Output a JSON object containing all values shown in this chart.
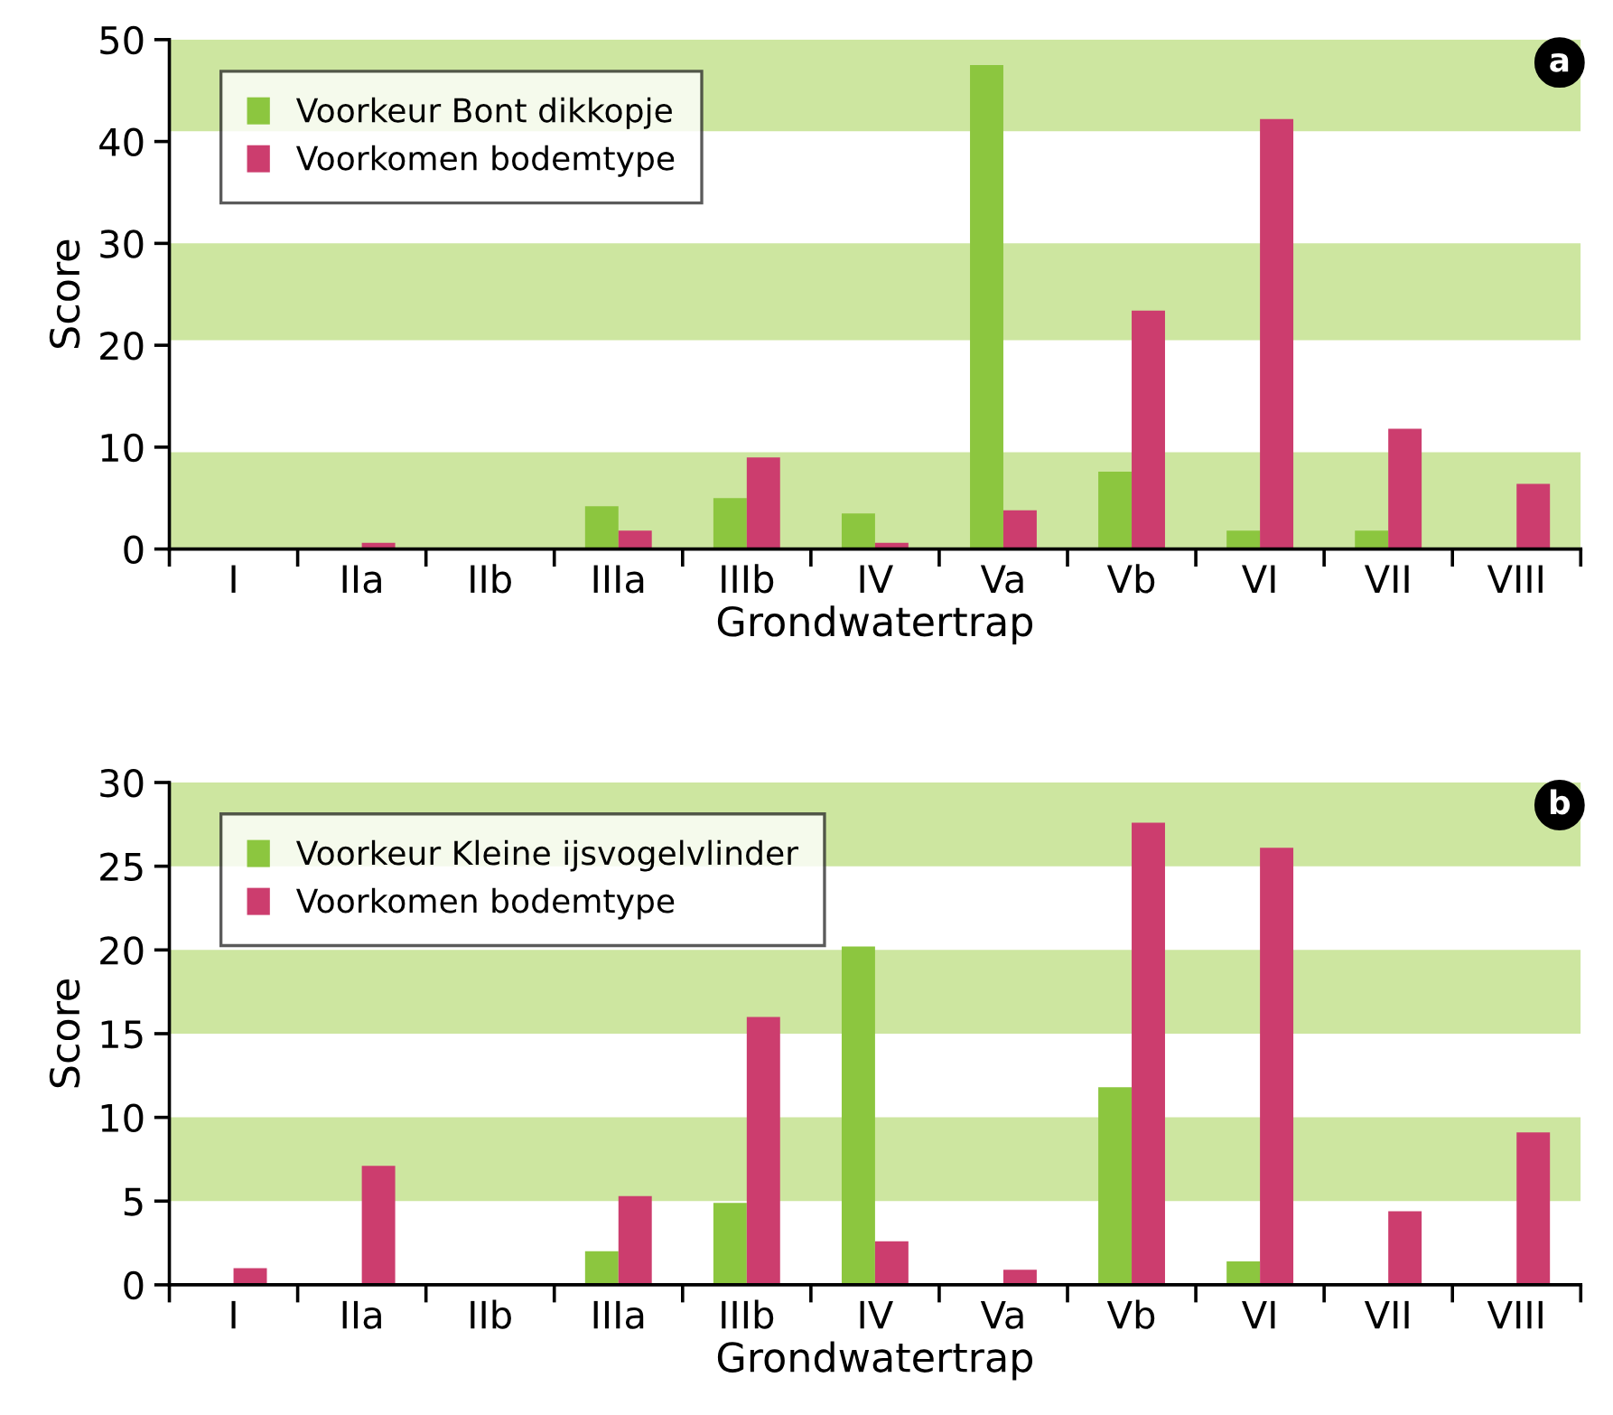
{
  "chart_data": [
    {
      "type": "bar",
      "xlabel": "Grondwatertrap",
      "ylabel": "Score",
      "categories": [
        "I",
        "IIa",
        "IIb",
        "IIIa",
        "IIIb",
        "IV",
        "Va",
        "Vb",
        "VI",
        "VII",
        "VIII"
      ],
      "series": [
        {
          "name": "Voorkeur Bont dikkopje",
          "color": "#8cc63f",
          "values": [
            0,
            0,
            0,
            4.2,
            5,
            3.5,
            47.5,
            7.6,
            1.8,
            1.8,
            0
          ]
        },
        {
          "name": "Voorkomen bodemtype",
          "color": "#cc3d6e",
          "values": [
            0.1,
            0.6,
            0,
            1.8,
            9,
            0.6,
            3.8,
            23.4,
            42.2,
            11.8,
            6.4
          ]
        }
      ],
      "ylim": [
        0,
        50
      ],
      "yticks": [
        0,
        10,
        20,
        30,
        40,
        50
      ],
      "bands": [
        {
          "axis": "y",
          "from": 0,
          "to": 9.5,
          "color": "#cde6a0"
        },
        {
          "axis": "y",
          "from": 20.5,
          "to": 30,
          "color": "#cde6a0"
        },
        {
          "axis": "y",
          "from": 41,
          "to": 50,
          "color": "#cde6a0"
        }
      ],
      "annotations": [
        "a"
      ],
      "legend": "top left",
      "grid": false
    },
    {
      "type": "bar",
      "xlabel": "Grondwatertrap",
      "ylabel": "Score",
      "categories": [
        "I",
        "IIa",
        "IIb",
        "IIIa",
        "IIIb",
        "IV",
        "Va",
        "Vb",
        "VI",
        "VII",
        "VIII"
      ],
      "series": [
        {
          "name": "Voorkeur Kleine ijsvogelvlinder",
          "color": "#8cc63f",
          "values": [
            0,
            0,
            0,
            2,
            4.9,
            20.2,
            0,
            11.8,
            1.4,
            0,
            0
          ]
        },
        {
          "name": "Voorkomen bodemtype",
          "color": "#cc3d6e",
          "values": [
            1,
            7.1,
            0,
            5.3,
            16,
            2.6,
            0.9,
            27.6,
            26.1,
            4.4,
            9.1
          ]
        }
      ],
      "ylim": [
        0,
        30
      ],
      "yticks": [
        0,
        5,
        10,
        15,
        20,
        25,
        30
      ],
      "bands": [
        {
          "axis": "y",
          "from": 5,
          "to": 10,
          "color": "#cde6a0"
        },
        {
          "axis": "y",
          "from": 15,
          "to": 20,
          "color": "#cde6a0"
        },
        {
          "axis": "y",
          "from": 25,
          "to": 30,
          "color": "#cde6a0"
        }
      ],
      "annotations": [
        "b"
      ],
      "legend": "top left",
      "grid": false
    }
  ]
}
